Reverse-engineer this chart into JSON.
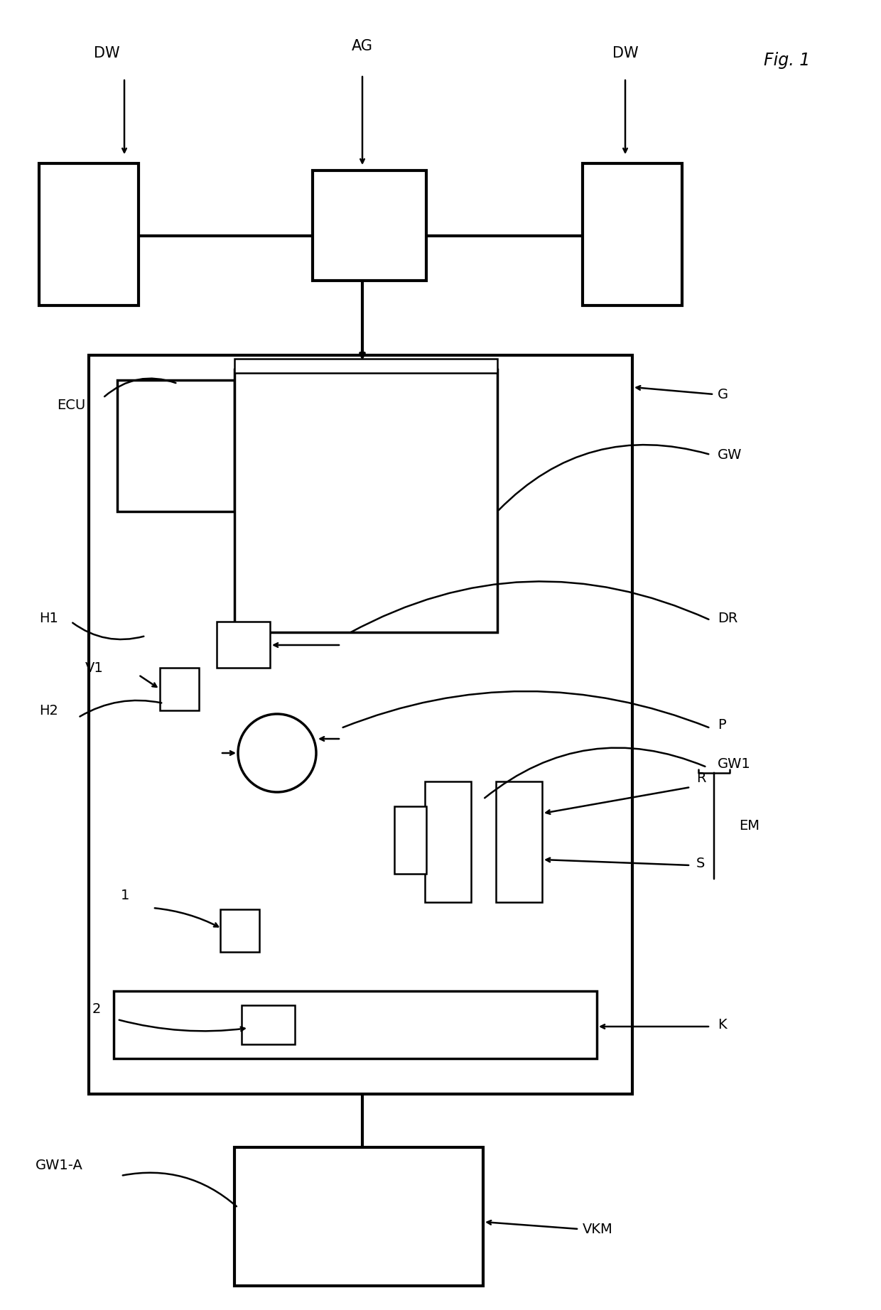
{
  "bg_color": "#ffffff",
  "lw_thin": 1.8,
  "lw_med": 2.5,
  "lw_thick": 3.0,
  "labels": {
    "DW_left": "DW",
    "DW_right": "DW",
    "AG": "AG",
    "G": "G",
    "GW": "GW",
    "ECU": "ECU",
    "H1": "H1",
    "H2": "H2",
    "V1": "V1",
    "DR": "DR",
    "P": "P",
    "GW1": "GW1",
    "R": "R",
    "S": "S",
    "EM": "EM",
    "K": "K",
    "GW1_A": "GW1-A",
    "VKM": "VKM",
    "num1": "1",
    "num2": "2",
    "fig1": "Fig. 1"
  },
  "fontsize_label": 14,
  "fontsize_fig": 17
}
